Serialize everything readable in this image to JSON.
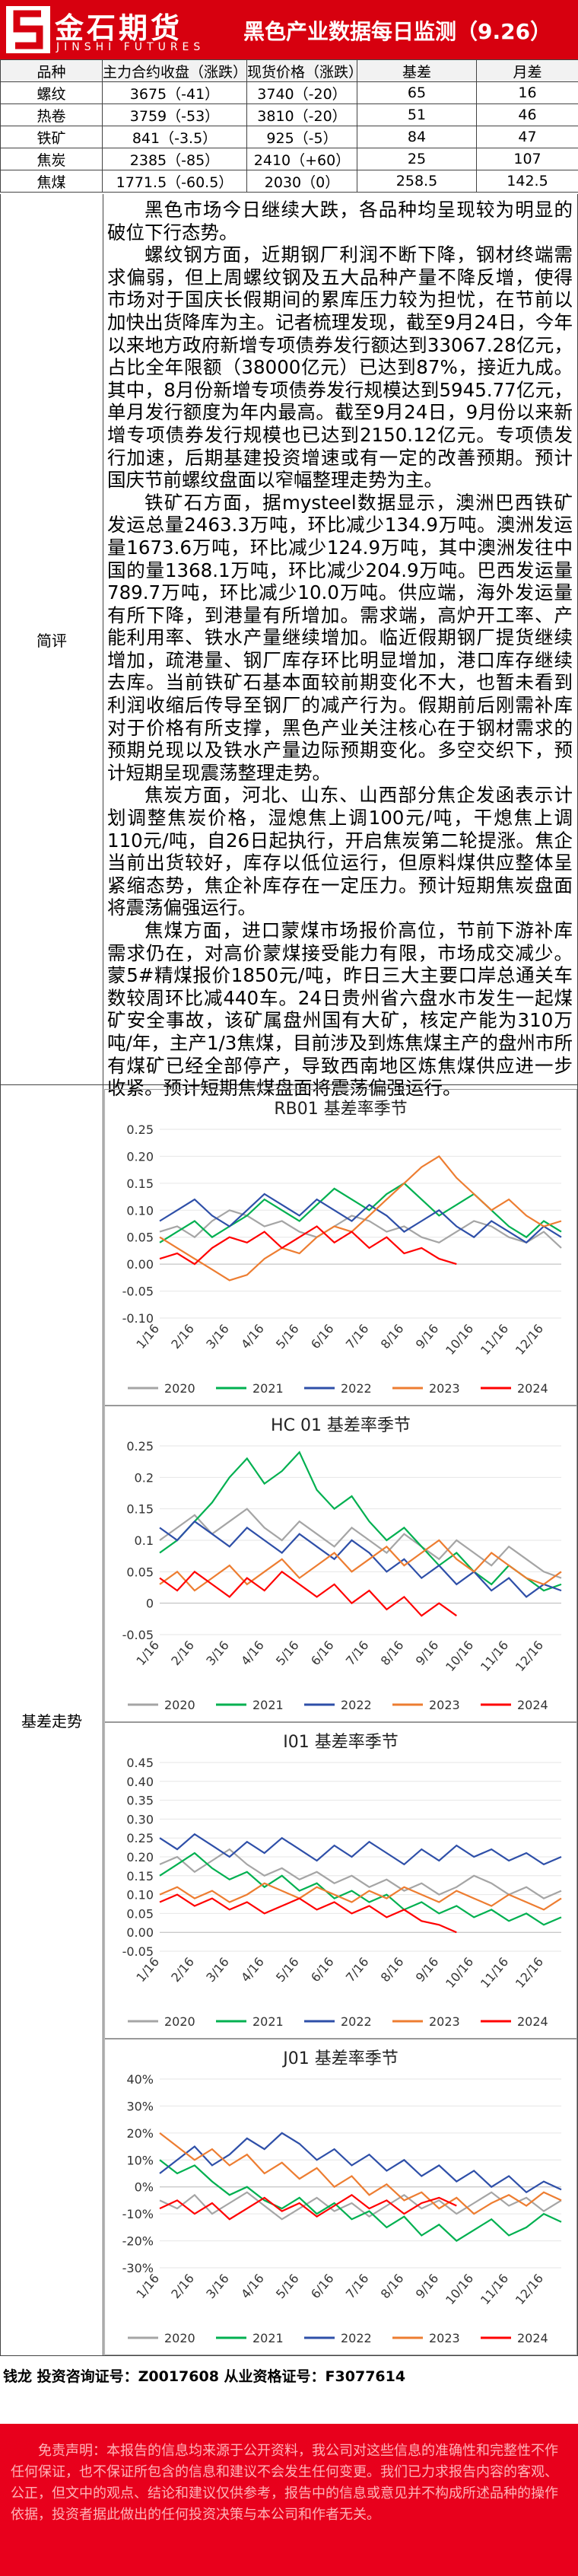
{
  "header": {
    "logo_cn": "金石期货",
    "logo_en": "JINSHI FUTURES",
    "title": "黑色产业数据每日监测（9.26）"
  },
  "table": {
    "headers": [
      "品种",
      "主力合约收盘（涨跌）",
      "现货价格（涨跌）",
      "基差",
      "月差"
    ],
    "rows": [
      [
        "螺纹",
        "3675（-41）",
        "3740（-20）",
        "65",
        "16"
      ],
      [
        "热卷",
        "3759（-53）",
        "3810（-20）",
        "51",
        "46"
      ],
      [
        "铁矿",
        "841（-3.5）",
        "925（-5）",
        "84",
        "47"
      ],
      [
        "焦炭",
        "2385（-85）",
        "2410（+60）",
        "25",
        "107"
      ],
      [
        "焦煤",
        "1771.5（-60.5）",
        "2030（0）",
        "258.5",
        "142.5"
      ]
    ]
  },
  "commentary": {
    "label": "简评",
    "paragraphs": [
      "黑色市场今日继续大跌，各品种均呈现较为明显的破位下行态势。",
      "螺纹钢方面，近期钢厂利润不断下降，钢材终端需求偏弱，但上周螺纹钢及五大品种产量不降反增，使得市场对于国庆长假期间的累库压力较为担忧，在节前以加快出货降库为主。记者梳理发现，截至9月24日，今年以来地方政府新增专项债券发行额达到33067.28亿元，占比全年限额（38000亿元）已达到87%，接近九成。其中，8月份新增专项债券发行规模达到5945.77亿元，单月发行额度为年内最高。截至9月24日，9月份以来新增专项债券发行规模也已达到2150.12亿元。专项债发行加速，后期基建投资增速或有一定的改善预期。预计国庆节前螺纹盘面以窄幅整理走势为主。",
      "铁矿石方面，据mysteel数据显示，澳洲巴西铁矿发运总量2463.3万吨，环比减少134.9万吨。澳洲发运量1673.6万吨，环比减少124.9万吨，其中澳洲发往中国的量1368.1万吨，环比减少204.9万吨。巴西发运量789.7万吨，环比减少10.0万吨。供应端，海外发运量有所下降，到港量有所增加。需求端，高炉开工率、产能利用率、铁水产量继续增加。临近假期钢厂提货继续增加，疏港量、钢厂库存环比明显增加，港口库存继续去库。当前铁矿石基本面较前期变化不大，也暂未看到利润收缩后传导至钢厂的减产行为。假期前后刚需补库对于价格有所支撑，黑色产业关注核心在于钢材需求的预期兑现以及铁水产量边际预期变化。多空交织下，预计短期呈现震荡整理走势。",
      "焦炭方面，河北、山东、山西部分焦企发函表示计划调整焦炭价格，湿熄焦上调100元/吨，干熄焦上调110元/吨，自26日起执行，开启焦炭第二轮提涨。焦企当前出货较好，库存以低位运行，但原料煤供应整体呈紧缩态势，焦企补库存在一定压力。预计短期焦炭盘面将震荡偏强运行。",
      "焦煤方面，进口蒙煤市场报价高位，节前下游补库需求仍在，对高价蒙煤接受能力有限，市场成交减少。蒙5#精煤报价1850元/吨，昨日三大主要口岸总通关车数较周环比减440车。24日贵州省六盘水市发生一起煤矿安全事故，该矿属盘州国有大矿，核定产能为310万吨/年，主产1/3焦煤，目前涉及到炼焦煤主产的盘州市所有煤矿已经全部停产，导致西南地区炼焦煤供应进一步收紧。预计短期焦煤盘面将震荡偏强运行。"
    ]
  },
  "basis": {
    "label": "基差走势"
  },
  "chart_data": [
    {
      "type": "line",
      "title": "RB01 基差率季节",
      "categories": [
        "1/16",
        null,
        "2/16",
        null,
        "3/16",
        null,
        "4/16",
        null,
        "5/16",
        null,
        "6/16",
        null,
        "7/16",
        null,
        "8/16",
        null,
        "9/16",
        null,
        "10/16",
        null,
        "11/16",
        null,
        "12/16",
        null
      ],
      "ylim": [
        -0.1,
        0.25
      ],
      "yticks": [
        {
          "value": -0.1,
          "label": "-0.10"
        },
        -0.05,
        {
          "value": 0,
          "label": "0.00"
        },
        0.05,
        {
          "value": 0.1,
          "label": "0.10"
        },
        0.15,
        {
          "value": 0.2,
          "label": "0.20"
        },
        0.25
      ],
      "series": [
        {
          "name": "2020",
          "color": "#a5a5a5",
          "values": [
            0.06,
            0.07,
            0.05,
            0.08,
            0.1,
            0.09,
            0.07,
            0.08,
            0.06,
            0.05,
            0.07,
            0.09,
            0.08,
            0.06,
            0.07,
            0.05,
            0.04,
            0.06,
            0.08,
            0.07,
            0.05,
            0.04,
            0.06,
            0.03
          ]
        },
        {
          "name": "2021",
          "color": "#00b050",
          "values": [
            0.04,
            0.06,
            0.08,
            0.05,
            0.07,
            0.09,
            0.12,
            0.1,
            0.08,
            0.11,
            0.14,
            0.12,
            0.1,
            0.13,
            0.15,
            0.12,
            0.09,
            0.11,
            0.13,
            0.1,
            0.07,
            0.05,
            0.08,
            0.06
          ]
        },
        {
          "name": "2022",
          "color": "#2e4fa8",
          "values": [
            0.08,
            0.1,
            0.12,
            0.09,
            0.07,
            0.1,
            0.13,
            0.11,
            0.09,
            0.12,
            0.1,
            0.08,
            0.11,
            0.09,
            0.06,
            0.08,
            0.1,
            0.07,
            0.05,
            0.08,
            0.06,
            0.04,
            0.07,
            0.05
          ]
        },
        {
          "name": "2023",
          "color": "#ed7d31",
          "values": [
            0.05,
            0.03,
            0.01,
            -0.01,
            -0.03,
            -0.02,
            0.01,
            0.03,
            0.02,
            0.05,
            0.07,
            0.06,
            0.09,
            0.12,
            0.15,
            0.18,
            0.2,
            0.16,
            0.13,
            0.1,
            0.12,
            0.09,
            0.07,
            0.08
          ]
        },
        {
          "name": "2024",
          "color": "#ff0000",
          "values": [
            0.01,
            0.02,
            0.0,
            0.03,
            0.05,
            0.04,
            0.06,
            0.03,
            0.05,
            0.07,
            0.04,
            0.06,
            0.03,
            0.05,
            0.02,
            0.03,
            0.01,
            0.0,
            null,
            null,
            null,
            null,
            null,
            null
          ]
        }
      ]
    },
    {
      "type": "line",
      "title": "HC 01 基差率季节",
      "categories": [
        "1/16",
        null,
        "2/16",
        null,
        "3/16",
        null,
        "4/16",
        null,
        "5/16",
        null,
        "6/16",
        null,
        "7/16",
        null,
        "8/16",
        null,
        "9/16",
        null,
        "10/16",
        null,
        "11/16",
        null,
        "12/16",
        null
      ],
      "ylim": [
        -0.05,
        0.25
      ],
      "yticks": [
        -0.05,
        0,
        0.05,
        0.1,
        0.15,
        0.2,
        0.25
      ],
      "series": [
        {
          "name": "2020",
          "color": "#a5a5a5",
          "values": [
            0.1,
            0.12,
            0.14,
            0.11,
            0.13,
            0.15,
            0.12,
            0.1,
            0.13,
            0.11,
            0.09,
            0.12,
            0.1,
            0.08,
            0.11,
            0.09,
            0.07,
            0.1,
            0.08,
            0.06,
            0.09,
            0.07,
            0.05,
            0.04
          ]
        },
        {
          "name": "2021",
          "color": "#00b050",
          "values": [
            0.08,
            0.1,
            0.13,
            0.16,
            0.2,
            0.23,
            0.19,
            0.21,
            0.24,
            0.18,
            0.15,
            0.17,
            0.13,
            0.1,
            0.12,
            0.09,
            0.06,
            0.08,
            0.05,
            0.03,
            0.06,
            0.04,
            0.02,
            0.03
          ]
        },
        {
          "name": "2022",
          "color": "#2e4fa8",
          "values": [
            0.12,
            0.1,
            0.13,
            0.11,
            0.09,
            0.12,
            0.1,
            0.08,
            0.11,
            0.09,
            0.07,
            0.1,
            0.08,
            0.05,
            0.07,
            0.04,
            0.06,
            0.03,
            0.05,
            0.02,
            0.04,
            0.01,
            0.03,
            0.02
          ]
        },
        {
          "name": "2023",
          "color": "#ed7d31",
          "values": [
            0.03,
            0.05,
            0.02,
            0.04,
            0.06,
            0.03,
            0.05,
            0.07,
            0.04,
            0.06,
            0.08,
            0.05,
            0.07,
            0.09,
            0.06,
            0.08,
            0.1,
            0.07,
            0.05,
            0.08,
            0.06,
            0.04,
            0.03,
            0.05
          ]
        },
        {
          "name": "2024",
          "color": "#ff0000",
          "values": [
            0.04,
            0.02,
            0.05,
            0.03,
            0.01,
            0.04,
            0.02,
            0.05,
            0.03,
            0.01,
            0.03,
            0.0,
            0.02,
            -0.01,
            0.01,
            -0.02,
            0.0,
            -0.02,
            null,
            null,
            null,
            null,
            null,
            null
          ]
        }
      ]
    },
    {
      "type": "line",
      "title": "I01 基差率季节",
      "categories": [
        "1/16",
        null,
        "2/16",
        null,
        "3/16",
        null,
        "4/16",
        null,
        "5/16",
        null,
        "6/16",
        null,
        "7/16",
        null,
        "8/16",
        null,
        "9/16",
        null,
        "10/16",
        null,
        "11/16",
        null,
        "12/16",
        null
      ],
      "ylim": [
        -0.05,
        0.45
      ],
      "yticks": [
        -0.05,
        {
          "value": 0,
          "label": "0.00"
        },
        0.05,
        {
          "value": 0.1,
          "label": "0.10"
        },
        0.15,
        {
          "value": 0.2,
          "label": "0.20"
        },
        0.25,
        {
          "value": 0.3,
          "label": "0.30"
        },
        0.35,
        {
          "value": 0.4,
          "label": "0.40"
        },
        0.45
      ],
      "series": [
        {
          "name": "2020",
          "color": "#a5a5a5",
          "values": [
            0.18,
            0.2,
            0.16,
            0.19,
            0.22,
            0.18,
            0.15,
            0.17,
            0.14,
            0.16,
            0.13,
            0.15,
            0.12,
            0.14,
            0.11,
            0.13,
            0.1,
            0.12,
            0.15,
            0.13,
            0.1,
            0.12,
            0.09,
            0.11
          ]
        },
        {
          "name": "2021",
          "color": "#00b050",
          "values": [
            0.15,
            0.18,
            0.21,
            0.17,
            0.14,
            0.16,
            0.12,
            0.15,
            0.11,
            0.13,
            0.09,
            0.11,
            0.08,
            0.1,
            0.06,
            0.08,
            0.05,
            0.07,
            0.04,
            0.06,
            0.03,
            0.05,
            0.02,
            0.04
          ]
        },
        {
          "name": "2022",
          "color": "#2e4fa8",
          "values": [
            0.25,
            0.22,
            0.26,
            0.23,
            0.2,
            0.24,
            0.21,
            0.25,
            0.22,
            0.19,
            0.23,
            0.2,
            0.24,
            0.21,
            0.18,
            0.22,
            0.19,
            0.23,
            0.2,
            0.22,
            0.19,
            0.21,
            0.18,
            0.2
          ]
        },
        {
          "name": "2023",
          "color": "#ed7d31",
          "values": [
            0.1,
            0.12,
            0.09,
            0.11,
            0.08,
            0.1,
            0.13,
            0.11,
            0.09,
            0.12,
            0.1,
            0.08,
            0.11,
            0.09,
            0.12,
            0.1,
            0.08,
            0.11,
            0.09,
            0.07,
            0.1,
            0.08,
            0.06,
            0.09
          ]
        },
        {
          "name": "2024",
          "color": "#ff0000",
          "values": [
            0.08,
            0.1,
            0.07,
            0.09,
            0.06,
            0.08,
            0.05,
            0.07,
            0.09,
            0.06,
            0.08,
            0.05,
            0.07,
            0.04,
            0.06,
            0.03,
            0.02,
            0.0,
            null,
            null,
            null,
            null,
            null,
            null
          ]
        }
      ]
    },
    {
      "type": "line",
      "title": "J01 基差率季节",
      "categories": [
        "1/16",
        null,
        "2/16",
        null,
        "3/16",
        null,
        "4/16",
        null,
        "5/16",
        null,
        "6/16",
        null,
        "7/16",
        null,
        "8/16",
        null,
        "9/16",
        null,
        "10/16",
        null,
        "11/16",
        null,
        "12/16",
        null
      ],
      "ylim": [
        -30,
        40
      ],
      "yticks": [
        {
          "value": -30,
          "label": "-30%"
        },
        {
          "value": -20,
          "label": "-20%"
        },
        {
          "value": -10,
          "label": "-10%"
        },
        {
          "value": 0,
          "label": "0%"
        },
        {
          "value": 10,
          "label": "10%"
        },
        {
          "value": 20,
          "label": "20%"
        },
        {
          "value": 30,
          "label": "30%"
        },
        {
          "value": 40,
          "label": "40%"
        }
      ],
      "series": [
        {
          "name": "2020",
          "color": "#a5a5a5",
          "values": [
            -5,
            -8,
            -3,
            -10,
            -6,
            -2,
            -7,
            -12,
            -8,
            -4,
            -9,
            -6,
            -11,
            -7,
            -3,
            -8,
            -5,
            -10,
            -6,
            -2,
            -7,
            -4,
            -9,
            -5
          ]
        },
        {
          "name": "2021",
          "color": "#00b050",
          "values": [
            10,
            5,
            8,
            2,
            -3,
            0,
            -5,
            -8,
            -4,
            -10,
            -6,
            -12,
            -9,
            -15,
            -11,
            -18,
            -14,
            -20,
            -16,
            -12,
            -18,
            -15,
            -10,
            -13
          ]
        },
        {
          "name": "2022",
          "color": "#2e4fa8",
          "values": [
            5,
            10,
            15,
            8,
            12,
            18,
            14,
            20,
            16,
            10,
            14,
            8,
            12,
            6,
            10,
            4,
            8,
            2,
            6,
            0,
            4,
            -2,
            2,
            -1
          ]
        },
        {
          "name": "2023",
          "color": "#ed7d31",
          "values": [
            20,
            15,
            10,
            14,
            8,
            12,
            5,
            9,
            3,
            7,
            0,
            4,
            -3,
            1,
            -5,
            -2,
            -8,
            -4,
            -10,
            -6,
            -3,
            -7,
            -2,
            -5
          ]
        },
        {
          "name": "2024",
          "color": "#ff0000",
          "values": [
            -8,
            -5,
            -10,
            -6,
            -12,
            -8,
            -4,
            -9,
            -6,
            -11,
            -7,
            -3,
            -8,
            -5,
            -10,
            -6,
            -4,
            -7,
            null,
            null,
            null,
            null,
            null,
            null
          ]
        }
      ]
    }
  ],
  "footer": {
    "analyst": "钱龙 投资咨询证号：Z0017608 从业资格证号：F3077614",
    "disclaimer": "免责声明：本报告的信息均来源于公开资料，我公司对这些信息的准确性和完整性不作任何保证，也不保证所包含的信息和建议不会发生任何变更。我们已力求报告内容的客观、公正，但文中的观点、结论和建议仅供参考，报告中的信息或意见并不构成所述品种的操作依据，投资者据此做出的任何投资决策与本公司和作者无关。"
  }
}
